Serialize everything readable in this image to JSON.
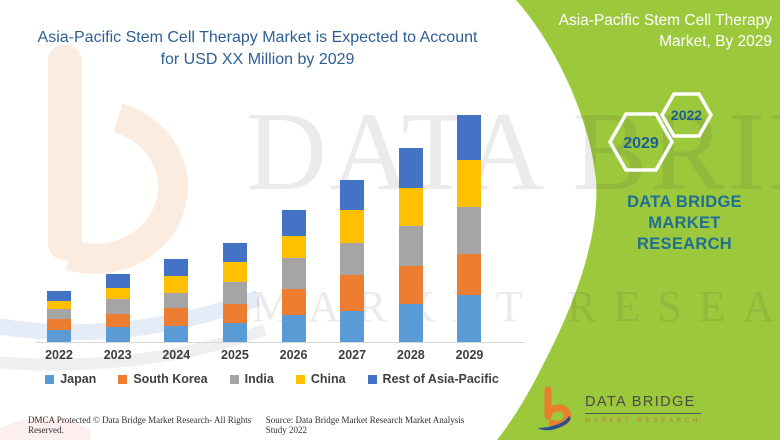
{
  "header": {
    "title_lines": [
      "Asia-Pacific Stem Cell Therapy Market is Expected to Account",
      "for USD XX Million by 2029"
    ]
  },
  "chart_data": {
    "type": "bar",
    "stacked": true,
    "title": "Asia-Pacific Stem Cell Therapy Market is Expected to Account for USD XX Million by 2029",
    "xlabel": "",
    "ylabel": "",
    "value_axis_shown": false,
    "units_note": "USD XX Million",
    "gridlines": false,
    "legend_position": "bottom",
    "categories": [
      "2022",
      "2023",
      "2024",
      "2025",
      "2026",
      "2027",
      "2028",
      "2029"
    ],
    "series": [
      {
        "name": "Japan",
        "color": "#5B9BD5",
        "values": [
          12,
          15,
          16,
          19,
          27,
          31,
          38,
          47
        ]
      },
      {
        "name": "South Korea",
        "color": "#ED7D31",
        "values": [
          11,
          13,
          18,
          19,
          26,
          36,
          38,
          41
        ]
      },
      {
        "name": "India",
        "color": "#A5A5A5",
        "values": [
          10,
          15,
          15,
          22,
          31,
          32,
          40,
          47
        ]
      },
      {
        "name": "China",
        "color": "#FFC000",
        "values": [
          8,
          11,
          17,
          20,
          22,
          33,
          38,
          47
        ]
      },
      {
        "name": "Rest of Asia-Pacific",
        "color": "#4472C4",
        "values": [
          10,
          14,
          17,
          19,
          26,
          30,
          40,
          45
        ]
      }
    ]
  },
  "side_panel": {
    "title_lines": [
      "Asia-Pacific Stem Cell Therapy",
      "Market, By 2029"
    ],
    "hexagons": [
      {
        "label": "2029"
      },
      {
        "label": "2022"
      }
    ],
    "brand_lines": [
      "DATA BRIDGE MARKET",
      "RESEARCH"
    ]
  },
  "logo": {
    "name": "DATA BRIDGE",
    "subtext": "MARKET RESEARCH"
  },
  "footer": {
    "left": "DMCA Protected © Data Bridge Market Research- All Rights Reserved.",
    "right": "Source: Data Bridge Market Research Market Analysis Study 2022"
  },
  "watermark": {
    "line1": "DATA BRIDGE",
    "line2": "MARKET RESEARCH"
  },
  "colors": {
    "panel_green": "#9cc83c",
    "title_blue": "#2d5f94",
    "brand_teal": "#1e7194",
    "hex_year_blue": "#1d5f93",
    "legend_text": "#3f3f3f",
    "logo_orange": "#E87F2F",
    "logo_blue": "#27518E",
    "axis_line": "#d8d8d8"
  }
}
